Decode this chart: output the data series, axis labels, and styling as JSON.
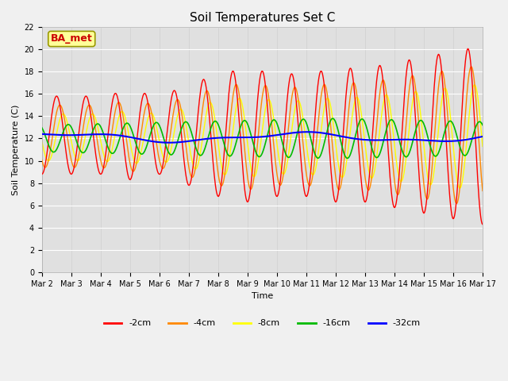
{
  "title": "Soil Temperatures Set C",
  "xlabel": "Time",
  "ylabel": "Soil Temperature (C)",
  "ylim": [
    0,
    22
  ],
  "yticks": [
    0,
    2,
    4,
    6,
    8,
    10,
    12,
    14,
    16,
    18,
    20,
    22
  ],
  "series_colors": {
    "-2cm": "#ff0000",
    "-4cm": "#ff8800",
    "-8cm": "#ffff00",
    "-16cm": "#00bb00",
    "-32cm": "#0000ff"
  },
  "annotation_text": "BA_met",
  "annotation_color": "#cc0000",
  "annotation_bg": "#ffff99",
  "annotation_border": "#999900",
  "n_days": 15,
  "base_temp": 12.0,
  "fig_bg": "#f0f0f0",
  "ax_bg": "#e0e0e0",
  "grid_color": "#ffffff",
  "title_fontsize": 11,
  "axis_label_fontsize": 8,
  "tick_fontsize": 7,
  "legend_fontsize": 8
}
